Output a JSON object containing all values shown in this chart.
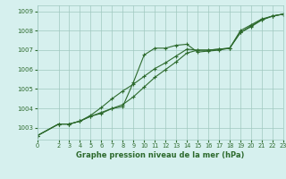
{
  "title": "Graphe pression niveau de la mer (hPa)",
  "background_color": "#d6f0ee",
  "grid_color": "#a0c8c0",
  "line_color": "#2d6a2d",
  "xlim": [
    0,
    23
  ],
  "ylim": [
    1002.4,
    1009.3
  ],
  "xticks": [
    0,
    2,
    3,
    4,
    5,
    6,
    7,
    8,
    9,
    10,
    11,
    12,
    13,
    14,
    15,
    16,
    17,
    18,
    19,
    20,
    21,
    22,
    23
  ],
  "yticks": [
    1003,
    1004,
    1005,
    1006,
    1007,
    1008,
    1009
  ],
  "series1_x": [
    0,
    2,
    3,
    4,
    5,
    6,
    7,
    8,
    9,
    10,
    11,
    12,
    13,
    14,
    15,
    16,
    17,
    18,
    19,
    20,
    21,
    22,
    23
  ],
  "series1_y": [
    1002.6,
    1003.2,
    1003.2,
    1003.35,
    1003.6,
    1003.75,
    1004.0,
    1004.1,
    1005.35,
    1006.75,
    1007.1,
    1007.1,
    1007.25,
    1007.3,
    1006.9,
    1006.95,
    1007.0,
    1007.1,
    1008.0,
    1008.3,
    1008.6,
    1008.75,
    1008.85
  ],
  "series2_x": [
    0,
    2,
    3,
    4,
    5,
    6,
    7,
    8,
    9,
    10,
    11,
    12,
    13,
    14,
    15,
    16,
    17,
    18,
    19,
    20,
    21,
    22,
    23
  ],
  "series2_y": [
    1002.6,
    1003.2,
    1003.2,
    1003.35,
    1003.65,
    1004.05,
    1004.5,
    1004.9,
    1005.25,
    1005.65,
    1006.05,
    1006.35,
    1006.7,
    1007.05,
    1007.0,
    1007.0,
    1007.05,
    1007.1,
    1007.9,
    1008.25,
    1008.55,
    1008.75,
    1008.85
  ],
  "series3_x": [
    0,
    2,
    3,
    4,
    5,
    6,
    7,
    8,
    9,
    10,
    11,
    12,
    13,
    14,
    15,
    16,
    17,
    18,
    19,
    20,
    21,
    22,
    23
  ],
  "series3_y": [
    1002.6,
    1003.2,
    1003.2,
    1003.35,
    1003.6,
    1003.8,
    1004.0,
    1004.2,
    1004.6,
    1005.1,
    1005.6,
    1006.0,
    1006.4,
    1006.85,
    1007.0,
    1007.0,
    1007.05,
    1007.1,
    1007.9,
    1008.2,
    1008.55,
    1008.75,
    1008.85
  ]
}
